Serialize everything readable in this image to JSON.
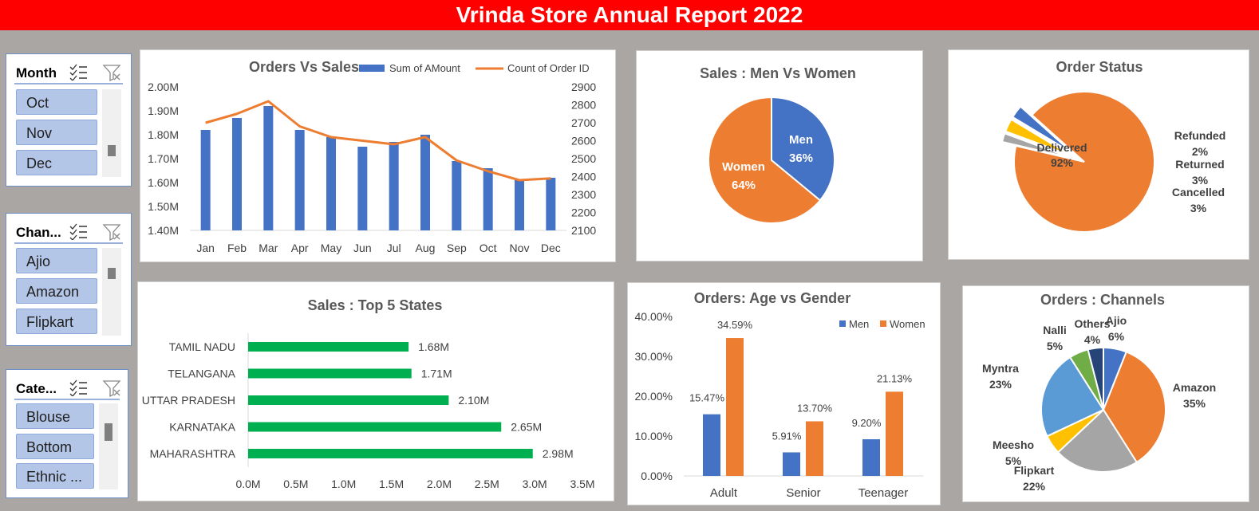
{
  "header": {
    "title": "Vrinda Store Annual Report 2022"
  },
  "colors": {
    "banner": "#ff0000",
    "blue": "#4472c4",
    "orange": "#ed7d31",
    "green": "#00b050",
    "gray": "#a5a5a5",
    "yellow": "#ffc000",
    "lightblue": "#5b9bd5",
    "lightgreen": "#70ad47",
    "navy": "#264478"
  },
  "slicers": [
    {
      "title": "Month",
      "items": [
        "Oct",
        "Nov",
        "Dec"
      ],
      "icons": [
        "multi-select-icon",
        "clear-filter-icon"
      ]
    },
    {
      "title": "Chan...",
      "items": [
        "Ajio",
        "Amazon",
        "Flipkart"
      ],
      "icons": [
        "multi-select-icon",
        "clear-filter-icon"
      ]
    },
    {
      "title": "Cate...",
      "items": [
        "Blouse",
        "Bottom",
        "Ethnic ..."
      ],
      "icons": [
        "multi-select-icon",
        "clear-filter-icon"
      ]
    }
  ],
  "chart_data": [
    {
      "id": "orders_vs_sales",
      "type": "bar",
      "title": "Orders Vs Sales",
      "categories": [
        "Jan",
        "Feb",
        "Mar",
        "Apr",
        "May",
        "Jun",
        "Jul",
        "Aug",
        "Sep",
        "Oct",
        "Nov",
        "Dec"
      ],
      "series": [
        {
          "name": "Sum of AMount",
          "type": "bar",
          "axis": "left",
          "values": [
            1.82,
            1.87,
            1.92,
            1.82,
            1.79,
            1.75,
            1.77,
            1.8,
            1.69,
            1.66,
            1.61,
            1.62
          ]
        },
        {
          "name": "Count of Order ID",
          "type": "line",
          "axis": "right",
          "values": [
            2700,
            2750,
            2820,
            2680,
            2620,
            2600,
            2580,
            2620,
            2490,
            2430,
            2380,
            2390
          ]
        }
      ],
      "ylim_left": [
        1.4,
        2.0
      ],
      "ylim_right": [
        2100,
        2900
      ],
      "yticks_left": [
        "1.40M",
        "1.50M",
        "1.60M",
        "1.70M",
        "1.80M",
        "1.90M",
        "2.00M"
      ],
      "yticks_right": [
        "2100",
        "2200",
        "2300",
        "2400",
        "2500",
        "2600",
        "2700",
        "2800",
        "2900"
      ],
      "legend": "top-right",
      "grid": false
    },
    {
      "id": "sales_men_women",
      "type": "pie",
      "title": "Sales : Men Vs Women",
      "slices": [
        {
          "label": "Men",
          "value": 36,
          "text": "36%"
        },
        {
          "label": "Women",
          "value": 64,
          "text": "64%"
        }
      ]
    },
    {
      "id": "order_status",
      "type": "pie",
      "title": "Order Status",
      "slices": [
        {
          "label": "Delivered",
          "value": 92,
          "text": "92%"
        },
        {
          "label": "Refunded",
          "value": 2,
          "text": "2%"
        },
        {
          "label": "Returned",
          "value": 3,
          "text": "3%"
        },
        {
          "label": "Cancelled",
          "value": 3,
          "text": "3%"
        }
      ]
    },
    {
      "id": "top5_states",
      "type": "bar",
      "orientation": "horizontal",
      "title": "Sales : Top 5 States",
      "categories": [
        "TAMIL NADU",
        "TELANGANA",
        "UTTAR PRADESH",
        "KARNATAKA",
        "MAHARASHTRA"
      ],
      "values": [
        1.68,
        1.71,
        2.1,
        2.65,
        2.98
      ],
      "value_labels": [
        "1.68M",
        "1.71M",
        "2.10M",
        "2.65M",
        "2.98M"
      ],
      "xlim": [
        0,
        3.5
      ],
      "xticks": [
        "0.0M",
        "0.5M",
        "1.0M",
        "1.5M",
        "2.0M",
        "2.5M",
        "3.0M",
        "3.5M"
      ]
    },
    {
      "id": "age_vs_gender",
      "type": "bar",
      "title": "Orders: Age vs Gender",
      "categories": [
        "Adult",
        "Senior",
        "Teenager"
      ],
      "series": [
        {
          "name": "Men",
          "values": [
            15.47,
            5.91,
            9.2
          ],
          "labels": [
            "15.47%",
            "5.91%",
            "9.20%"
          ]
        },
        {
          "name": "Women",
          "values": [
            34.59,
            13.7,
            21.13
          ],
          "labels": [
            "34.59%",
            "13.70%",
            "21.13%"
          ]
        }
      ],
      "ylim": [
        0,
        40
      ],
      "yticks": [
        "0.00%",
        "10.00%",
        "20.00%",
        "30.00%",
        "40.00%"
      ],
      "legend": "top-right"
    },
    {
      "id": "orders_channels",
      "type": "pie",
      "title": "Orders : Channels",
      "slices": [
        {
          "label": "Ajio",
          "value": 6,
          "text": "6%"
        },
        {
          "label": "Amazon",
          "value": 35,
          "text": "35%"
        },
        {
          "label": "Flipkart",
          "value": 22,
          "text": "22%"
        },
        {
          "label": "Meesho",
          "value": 5,
          "text": "5%"
        },
        {
          "label": "Myntra",
          "value": 23,
          "text": "23%"
        },
        {
          "label": "Nalli",
          "value": 5,
          "text": "5%"
        },
        {
          "label": "Others",
          "value": 4,
          "text": "4%"
        }
      ]
    }
  ]
}
